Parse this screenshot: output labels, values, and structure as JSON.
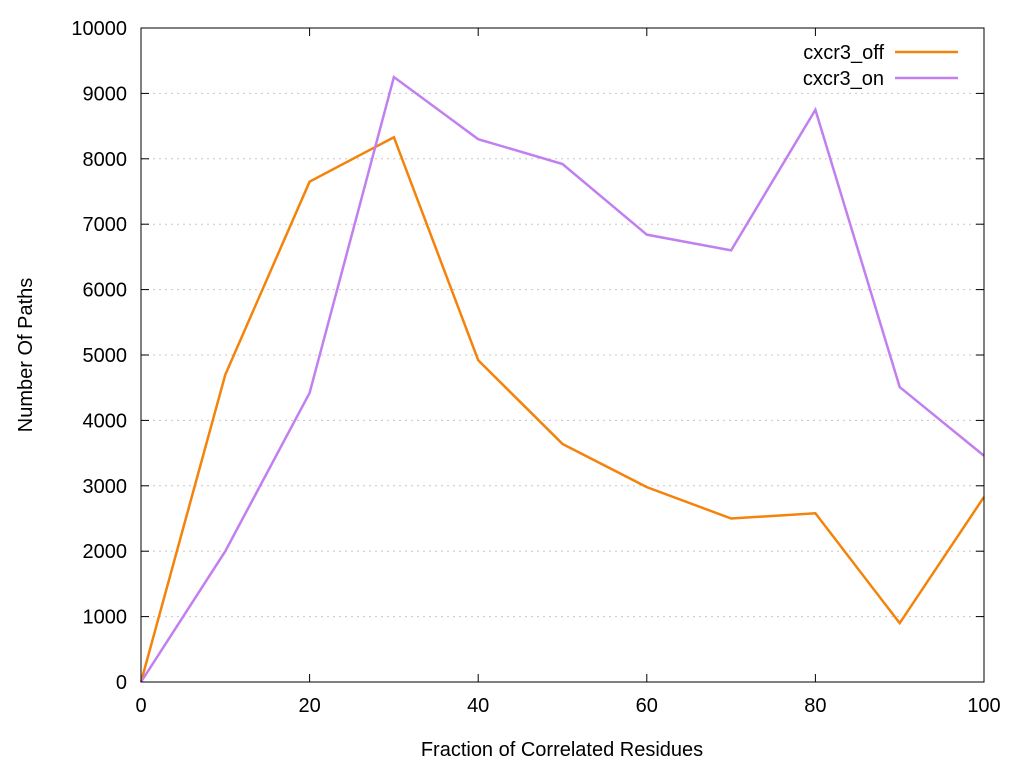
{
  "chart_data": {
    "type": "line",
    "title": "",
    "xlabel": "Fraction of Correlated Residues",
    "ylabel": "Number Of Paths",
    "xlim": [
      0,
      100
    ],
    "ylim": [
      0,
      10000
    ],
    "xticks": [
      0,
      20,
      40,
      60,
      80,
      100
    ],
    "yticks": [
      0,
      1000,
      2000,
      3000,
      4000,
      5000,
      6000,
      7000,
      8000,
      9000,
      10000
    ],
    "grid": true,
    "legend_position": "top-right",
    "x": [
      0,
      10,
      20,
      30,
      40,
      50,
      60,
      70,
      80,
      90,
      100
    ],
    "series": [
      {
        "name": "cxcr3_off",
        "color": "#f5820a",
        "values": [
          0,
          4700,
          7650,
          8330,
          4920,
          3640,
          2980,
          2500,
          2580,
          900,
          2830
        ]
      },
      {
        "name": "cxcr3_on",
        "color": "#c27ff0",
        "values": [
          0,
          2000,
          4420,
          9250,
          8300,
          7920,
          6840,
          6600,
          8750,
          4510,
          3460
        ]
      }
    ]
  }
}
